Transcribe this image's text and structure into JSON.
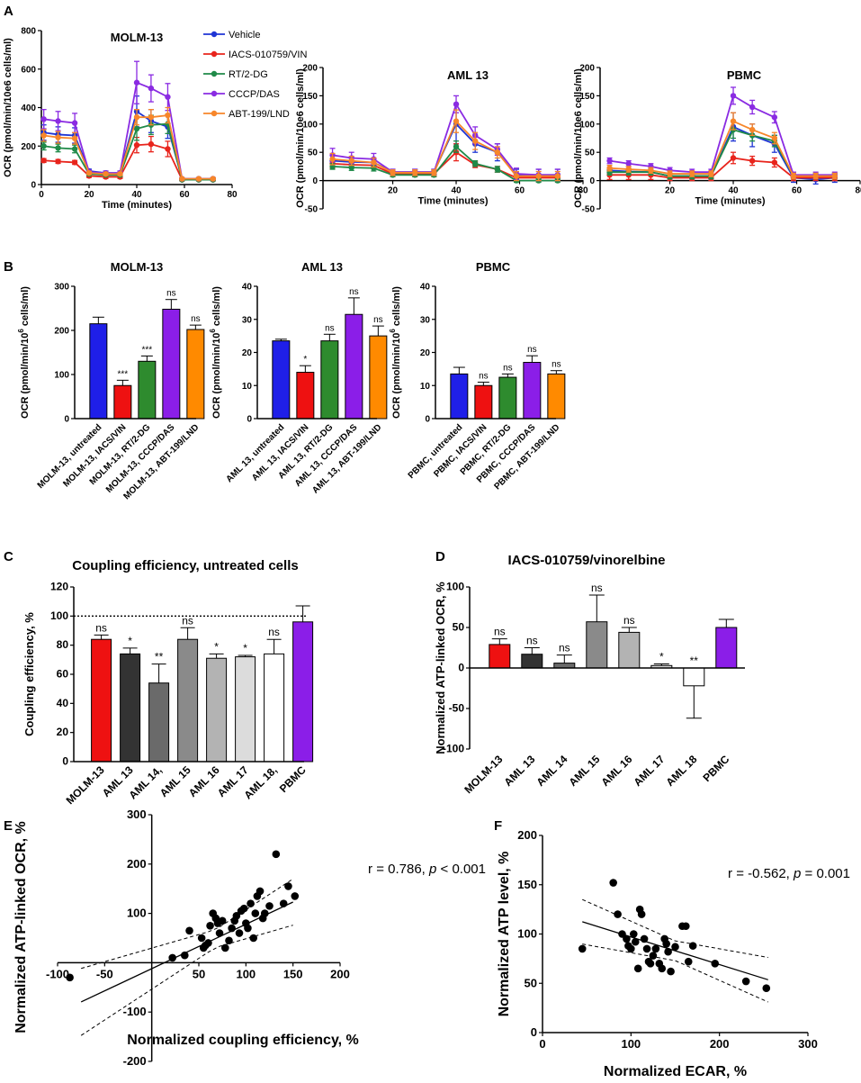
{
  "panel_letters": {
    "A": "A",
    "B": "B",
    "C": "C",
    "D": "D",
    "E": "E",
    "F": "F"
  },
  "colors": {
    "vehicle": "#1f35d4",
    "iacs": "#e8241c",
    "rt2dg": "#1f8a48",
    "cccp": "#8a2be2",
    "abt": "#f7862a",
    "bar_blue": "#1f1fe8",
    "bar_red": "#ee1111",
    "bar_green": "#2e8b2e",
    "bar_purple": "#8b1ee8",
    "bar_orange": "#ff8a00",
    "c_molm": "#ee1111",
    "c_aml13": "#333333",
    "c_aml14": "#6a6a6a",
    "c_aml15": "#8a8a8a",
    "c_aml16": "#b3b3b3",
    "c_aml17": "#dcdcdc",
    "c_aml18": "#ffffff",
    "c_pbmc": "#8b1ee8"
  },
  "chart_data": [
    {
      "id": "A1",
      "type": "line",
      "title": "MOLM-13",
      "xlabel": "Time (minutes)",
      "ylabel": "OCR (pmol/min/10e6 cells/ml)",
      "xlim": [
        0,
        80
      ],
      "ylim": [
        0,
        800
      ],
      "xticks": [
        "0",
        "20",
        "40",
        "60",
        "80"
      ],
      "yticks": [
        "0",
        "200",
        "400",
        "600",
        "800"
      ],
      "x": [
        1,
        7,
        14,
        20,
        27,
        33,
        40,
        46,
        53,
        59,
        66,
        72
      ],
      "series": [
        {
          "name": "Vehicle",
          "color_key": "vehicle",
          "values": [
            270,
            260,
            255,
            70,
            60,
            60,
            380,
            330,
            300,
            30,
            30,
            30
          ],
          "err": [
            40,
            40,
            40,
            10,
            10,
            10,
            80,
            60,
            60,
            5,
            5,
            5
          ]
        },
        {
          "name": "IACS-010759/VIN",
          "color_key": "iacs",
          "values": [
            125,
            120,
            115,
            45,
            40,
            40,
            205,
            210,
            185,
            25,
            25,
            25
          ],
          "err": [
            10,
            10,
            10,
            8,
            8,
            8,
            40,
            40,
            40,
            5,
            5,
            5
          ]
        },
        {
          "name": "RT/2-DG",
          "color_key": "rt2dg",
          "values": [
            200,
            190,
            185,
            55,
            50,
            50,
            290,
            310,
            315,
            25,
            25,
            25
          ],
          "err": [
            20,
            20,
            20,
            8,
            8,
            8,
            60,
            50,
            50,
            5,
            5,
            5
          ]
        },
        {
          "name": "CCCP/DAS",
          "color_key": "cccp",
          "values": [
            340,
            330,
            320,
            65,
            60,
            60,
            530,
            500,
            455,
            30,
            30,
            30
          ],
          "err": [
            50,
            50,
            50,
            10,
            10,
            10,
            110,
            70,
            70,
            5,
            5,
            5
          ]
        },
        {
          "name": "ABT-199/LND",
          "color_key": "abt",
          "values": [
            255,
            245,
            240,
            60,
            55,
            55,
            350,
            350,
            360,
            30,
            30,
            30
          ],
          "err": [
            30,
            30,
            30,
            8,
            8,
            8,
            40,
            40,
            40,
            5,
            5,
            5
          ]
        }
      ]
    },
    {
      "id": "A2",
      "type": "line",
      "title": "AML 13",
      "xlabel": "Time (minutes)",
      "ylabel": "OCR (pmol/min/10e6 cells/ml)",
      "xlim": [
        -2,
        80
      ],
      "ylim": [
        -50,
        200
      ],
      "xticks": [
        "20",
        "40",
        "60",
        "80"
      ],
      "yticks": [
        "-50",
        "0",
        "50",
        "100",
        "150",
        "200"
      ],
      "x": [
        1,
        7,
        14,
        20,
        27,
        33,
        40,
        46,
        53,
        59,
        66,
        72
      ],
      "series": [
        {
          "name": "Vehicle",
          "color_key": "vehicle",
          "values": [
            35,
            33,
            32,
            15,
            15,
            15,
            100,
            65,
            50,
            10,
            10,
            10
          ],
          "err": [
            10,
            8,
            8,
            5,
            5,
            5,
            35,
            15,
            15,
            10,
            10,
            10
          ]
        },
        {
          "name": "IACS-010759/VIN",
          "color_key": "iacs",
          "values": [
            30,
            28,
            27,
            12,
            12,
            12,
            50,
            28,
            20,
            5,
            5,
            5
          ],
          "err": [
            8,
            5,
            5,
            5,
            5,
            5,
            15,
            5,
            5,
            5,
            5,
            5
          ]
        },
        {
          "name": "RT/2-DG",
          "color_key": "rt2dg",
          "values": [
            25,
            23,
            22,
            10,
            10,
            10,
            60,
            30,
            20,
            0,
            0,
            0
          ],
          "err": [
            5,
            5,
            5,
            3,
            3,
            3,
            10,
            5,
            5,
            3,
            3,
            3
          ]
        },
        {
          "name": "CCCP/DAS",
          "color_key": "cccp",
          "values": [
            45,
            40,
            38,
            15,
            15,
            15,
            135,
            80,
            55,
            12,
            10,
            10
          ],
          "err": [
            12,
            10,
            10,
            5,
            5,
            5,
            15,
            15,
            10,
            10,
            10,
            10
          ]
        },
        {
          "name": "ABT-199/LND",
          "color_key": "abt",
          "values": [
            38,
            35,
            32,
            14,
            14,
            14,
            105,
            70,
            50,
            8,
            8,
            8
          ],
          "err": [
            10,
            8,
            8,
            5,
            5,
            5,
            20,
            15,
            10,
            8,
            8,
            8
          ]
        }
      ]
    },
    {
      "id": "A3",
      "type": "line",
      "title": "PBMC",
      "xlabel": "Time (minutes)",
      "ylabel": "OCR (pmol/min/10e6 cells/ml)",
      "xlim": [
        -2,
        80
      ],
      "ylim": [
        -50,
        200
      ],
      "xticks": [
        "20",
        "40",
        "60",
        "80"
      ],
      "yticks": [
        "-50",
        "0",
        "50",
        "100",
        "150",
        "200"
      ],
      "x": [
        1,
        7,
        14,
        20,
        27,
        33,
        40,
        46,
        53,
        59,
        66,
        72
      ],
      "series": [
        {
          "name": "Vehicle",
          "color_key": "vehicle",
          "values": [
            18,
            16,
            15,
            8,
            8,
            8,
            95,
            80,
            65,
            5,
            2,
            5
          ],
          "err": [
            5,
            5,
            5,
            5,
            5,
            5,
            25,
            20,
            15,
            8,
            8,
            8
          ]
        },
        {
          "name": "IACS-010759/VIN",
          "color_key": "iacs",
          "values": [
            10,
            10,
            10,
            5,
            5,
            5,
            40,
            35,
            32,
            5,
            5,
            5
          ],
          "err": [
            8,
            8,
            8,
            5,
            5,
            5,
            10,
            8,
            8,
            5,
            5,
            5
          ]
        },
        {
          "name": "RT/2-DG",
          "color_key": "rt2dg",
          "values": [
            15,
            15,
            15,
            8,
            8,
            8,
            90,
            80,
            70,
            8,
            8,
            8
          ],
          "err": [
            5,
            5,
            5,
            5,
            5,
            5,
            15,
            10,
            10,
            5,
            5,
            5
          ]
        },
        {
          "name": "CCCP/DAS",
          "color_key": "cccp",
          "values": [
            35,
            30,
            25,
            18,
            15,
            15,
            150,
            130,
            112,
            10,
            10,
            10
          ],
          "err": [
            5,
            5,
            5,
            5,
            5,
            5,
            15,
            12,
            10,
            5,
            5,
            5
          ]
        },
        {
          "name": "ABT-199/LND",
          "color_key": "abt",
          "values": [
            22,
            20,
            18,
            12,
            12,
            12,
            105,
            90,
            75,
            8,
            8,
            8
          ],
          "err": [
            5,
            5,
            5,
            5,
            5,
            5,
            15,
            10,
            10,
            5,
            5,
            5
          ]
        }
      ]
    },
    {
      "id": "B1",
      "type": "bar",
      "title": "MOLM-13",
      "ylabel_prefix": "OCR (pmol/min/10",
      "ylabel_sup": "6",
      "ylabel_suffix": " cells/ml)",
      "ylim": [
        0,
        300
      ],
      "yticks": [
        "0",
        "100",
        "200",
        "300"
      ],
      "categories": [
        "MOLM-13, untreated",
        "MOLM-13, IACS/VIN",
        "MOLM-13, RT/2-DG",
        "MOLM-13, CCCP/DAS",
        "MOLM-13, ABT-199/LND"
      ],
      "values": [
        215,
        75,
        130,
        248,
        202
      ],
      "err": [
        15,
        12,
        12,
        22,
        10
      ],
      "sig": [
        "",
        "***",
        "***",
        "ns",
        "ns"
      ],
      "color_keys": [
        "bar_blue",
        "bar_red",
        "bar_green",
        "bar_purple",
        "bar_orange"
      ]
    },
    {
      "id": "B2",
      "type": "bar",
      "title": "AML 13",
      "ylabel_prefix": "OCR (pmol/min/10",
      "ylabel_sup": "6",
      "ylabel_suffix": " cells/ml)",
      "ylim": [
        0,
        40
      ],
      "yticks": [
        "0",
        "10",
        "20",
        "30",
        "40"
      ],
      "categories": [
        "AML 13, untreated",
        "AML 13, IACS/VIN",
        "AML 13, RT/2-DG",
        "AML 13, CCCP/DAS",
        "AML 13, ABT-199/LND"
      ],
      "values": [
        23.5,
        14,
        23.5,
        31.5,
        25
      ],
      "err": [
        0.5,
        2,
        2,
        5,
        3
      ],
      "sig": [
        "",
        "*",
        "ns",
        "ns",
        "ns"
      ],
      "color_keys": [
        "bar_blue",
        "bar_red",
        "bar_green",
        "bar_purple",
        "bar_orange"
      ]
    },
    {
      "id": "B3",
      "type": "bar",
      "title": "PBMC",
      "ylabel_prefix": "OCR (pmol/min/10",
      "ylabel_sup": "6",
      "ylabel_suffix": " cells/ml)",
      "ylim": [
        0,
        40
      ],
      "yticks": [
        "0",
        "10",
        "20",
        "30",
        "40"
      ],
      "categories": [
        "PBMC, untreated",
        "PBMC, IACS/VIN",
        "PBMC, RT/2-DG",
        "PBMC, CCCP/DAS",
        "PBMC, ABT-199/LND"
      ],
      "values": [
        13.5,
        10,
        12.5,
        17,
        13.5
      ],
      "err": [
        2,
        1,
        1,
        2,
        1
      ],
      "sig": [
        "",
        "ns",
        "ns",
        "ns",
        "ns"
      ],
      "color_keys": [
        "bar_blue",
        "bar_red",
        "bar_green",
        "bar_purple",
        "bar_orange"
      ]
    },
    {
      "id": "C",
      "type": "bar",
      "title": "Coupling efficiency, untreated cells",
      "ylabel": "Coupling efficiency, %",
      "ylim": [
        0,
        120
      ],
      "yticks": [
        "0",
        "20",
        "40",
        "60",
        "80",
        "100",
        "120"
      ],
      "reference_line": 100,
      "categories": [
        "MOLM-13",
        "AML 13",
        "AML 14,",
        "AML 15",
        "AML 16",
        "AML 17",
        "AML 18,",
        "PBMC"
      ],
      "values": [
        84,
        74,
        54,
        84,
        71,
        72,
        74,
        96
      ],
      "err": [
        3,
        4,
        13,
        8,
        3,
        1,
        10,
        11
      ],
      "sig": [
        "ns",
        "*",
        "**",
        "ns",
        "*",
        "*",
        "ns",
        ""
      ],
      "color_keys": [
        "c_molm",
        "c_aml13",
        "c_aml14",
        "c_aml15",
        "c_aml16",
        "c_aml17",
        "c_aml18",
        "c_pbmc"
      ]
    },
    {
      "id": "D",
      "type": "bar",
      "title": "IACS-010759/vinorelbine",
      "ylabel": "Normalized ATP-linked OCR, %",
      "ylim": [
        -100,
        100
      ],
      "yticks": [
        "-100",
        "-50",
        "0",
        "50",
        "100"
      ],
      "categories": [
        "MOLM-13",
        "AML 13",
        "AML 14",
        "AML 15",
        "AML 16",
        "AML 17",
        "AML 18",
        "PBMC"
      ],
      "values": [
        29,
        17,
        6,
        57,
        44,
        3,
        -22,
        50
      ],
      "err": [
        7,
        8,
        10,
        33,
        6,
        2,
        40,
        10
      ],
      "sig": [
        "ns",
        "ns",
        "ns",
        "ns",
        "ns",
        "*",
        "**",
        ""
      ],
      "color_keys": [
        "c_molm",
        "c_aml13",
        "c_aml14",
        "c_aml15",
        "c_aml16",
        "c_aml17",
        "c_aml18",
        "c_pbmc"
      ]
    },
    {
      "id": "E",
      "type": "scatter",
      "xlabel": "Normalized coupling efficiency, %",
      "ylabel": "Normalized ATP-linked OCR, %",
      "xlim": [
        -100,
        200
      ],
      "ylim": [
        -200,
        300
      ],
      "xticks": [
        "-100",
        "-50",
        "50",
        "100",
        "150",
        "200"
      ],
      "yticks": [
        "-200",
        "-100",
        "100",
        "200",
        "300"
      ],
      "annotation_prefix": "r = 0.786, ",
      "annotation_p": "p",
      "annotation_suffix": " < 0.001",
      "fit": {
        "slope": 0.9,
        "intercept": -12,
        "x_range": [
          -75,
          150
        ]
      },
      "points": [
        [
          -87,
          -30
        ],
        [
          22,
          10
        ],
        [
          35,
          15
        ],
        [
          40,
          65
        ],
        [
          53,
          50
        ],
        [
          55,
          30
        ],
        [
          57,
          35
        ],
        [
          60,
          40
        ],
        [
          62,
          75
        ],
        [
          65,
          100
        ],
        [
          68,
          90
        ],
        [
          70,
          80
        ],
        [
          72,
          60
        ],
        [
          75,
          85
        ],
        [
          78,
          30
        ],
        [
          82,
          45
        ],
        [
          85,
          70
        ],
        [
          88,
          85
        ],
        [
          90,
          95
        ],
        [
          93,
          60
        ],
        [
          95,
          105
        ],
        [
          98,
          110
        ],
        [
          100,
          80
        ],
        [
          102,
          70
        ],
        [
          105,
          120
        ],
        [
          108,
          50
        ],
        [
          110,
          100
        ],
        [
          112,
          135
        ],
        [
          115,
          145
        ],
        [
          118,
          90
        ],
        [
          120,
          100
        ],
        [
          125,
          115
        ],
        [
          132,
          220
        ],
        [
          140,
          120
        ],
        [
          145,
          155
        ],
        [
          152,
          135
        ]
      ]
    },
    {
      "id": "F",
      "type": "scatter",
      "xlabel": "Normalized ECAR, %",
      "ylabel": "Normalized ATP level, %",
      "xlim": [
        0,
        300
      ],
      "ylim": [
        0,
        200
      ],
      "xticks": [
        "0",
        "100",
        "200",
        "300"
      ],
      "yticks": [
        "0",
        "50",
        "100",
        "150",
        "200"
      ],
      "annotation_prefix": "r = -0.562, ",
      "annotation_p": "p",
      "annotation_suffix": " = 0.001",
      "fit": {
        "slope": -0.28,
        "intercept": 125,
        "x_range": [
          45,
          255
        ]
      },
      "points": [
        [
          45,
          85
        ],
        [
          80,
          152
        ],
        [
          85,
          120
        ],
        [
          90,
          100
        ],
        [
          95,
          95
        ],
        [
          97,
          88
        ],
        [
          100,
          85
        ],
        [
          103,
          100
        ],
        [
          105,
          92
        ],
        [
          108,
          65
        ],
        [
          110,
          125
        ],
        [
          112,
          120
        ],
        [
          115,
          95
        ],
        [
          118,
          85
        ],
        [
          120,
          72
        ],
        [
          122,
          70
        ],
        [
          125,
          78
        ],
        [
          128,
          85
        ],
        [
          132,
          70
        ],
        [
          135,
          65
        ],
        [
          138,
          95
        ],
        [
          140,
          90
        ],
        [
          142,
          82
        ],
        [
          145,
          62
        ],
        [
          150,
          87
        ],
        [
          158,
          108
        ],
        [
          162,
          108
        ],
        [
          165,
          72
        ],
        [
          170,
          88
        ],
        [
          195,
          70
        ],
        [
          230,
          52
        ],
        [
          253,
          45
        ]
      ]
    }
  ]
}
